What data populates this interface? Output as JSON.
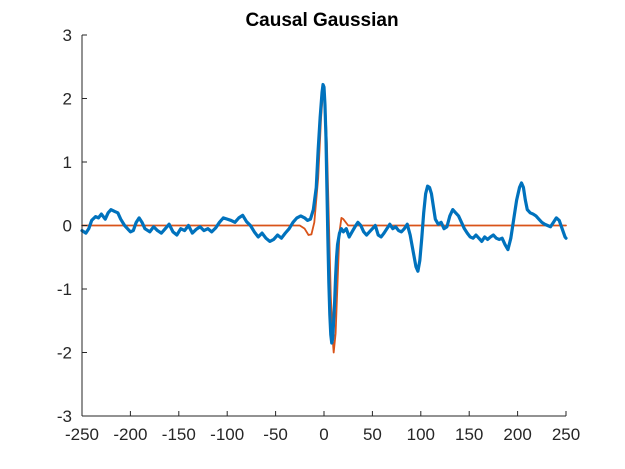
{
  "chart_data": {
    "type": "line",
    "title": "Causal Gaussian",
    "xlabel": "",
    "ylabel": "",
    "xlim": [
      -250,
      250
    ],
    "ylim": [
      -3,
      3
    ],
    "grid": false,
    "x_ticks": [
      -250,
      -200,
      -150,
      -100,
      -50,
      0,
      50,
      100,
      150,
      200,
      250
    ],
    "x_tick_labels": [
      "-250",
      "-200",
      "-150",
      "-100",
      "-50",
      "0",
      "50",
      "100",
      "150",
      "200",
      "250"
    ],
    "y_ticks": [
      -3,
      -2,
      -1,
      0,
      1,
      2,
      3
    ],
    "y_tick_labels": [
      "-3",
      "-2",
      "-1",
      "0",
      "1",
      "2",
      "3"
    ],
    "colors": {
      "noisy": "#0072BD",
      "clean": "#D95319",
      "axis": "#262626"
    },
    "series": [
      {
        "role": "clean",
        "points": [
          [
            -250,
            0
          ],
          [
            -25,
            0
          ],
          [
            -20,
            -0.05
          ],
          [
            -16,
            -0.15
          ],
          [
            -13,
            -0.14
          ],
          [
            -10,
            0.05
          ],
          [
            -6,
            0.75
          ],
          [
            -3,
            1.7
          ],
          [
            -1,
            2.12
          ],
          [
            1,
            2.0
          ],
          [
            3,
            1.3
          ],
          [
            5,
            0.1
          ],
          [
            7,
            -1.1
          ],
          [
            9,
            -1.8
          ],
          [
            10,
            -2.0
          ],
          [
            12,
            -1.7
          ],
          [
            14,
            -0.9
          ],
          [
            16,
            -0.1
          ],
          [
            18,
            0.12
          ],
          [
            20,
            0.1
          ],
          [
            25,
            0
          ],
          [
            250,
            0
          ]
        ]
      },
      {
        "role": "noisy",
        "points": [
          [
            -250,
            -0.08
          ],
          [
            -246,
            -0.12
          ],
          [
            -243,
            -0.05
          ],
          [
            -240,
            0.08
          ],
          [
            -236,
            0.14
          ],
          [
            -233,
            0.12
          ],
          [
            -230,
            0.18
          ],
          [
            -226,
            0.1
          ],
          [
            -223,
            0.2
          ],
          [
            -220,
            0.25
          ],
          [
            -216,
            0.22
          ],
          [
            -213,
            0.2
          ],
          [
            -210,
            0.1
          ],
          [
            -206,
            0.0
          ],
          [
            -203,
            -0.05
          ],
          [
            -200,
            -0.1
          ],
          [
            -197,
            -0.08
          ],
          [
            -194,
            0.05
          ],
          [
            -191,
            0.12
          ],
          [
            -188,
            0.05
          ],
          [
            -185,
            -0.05
          ],
          [
            -180,
            -0.1
          ],
          [
            -176,
            -0.02
          ],
          [
            -172,
            -0.08
          ],
          [
            -168,
            -0.12
          ],
          [
            -164,
            -0.05
          ],
          [
            -160,
            0.02
          ],
          [
            -156,
            -0.1
          ],
          [
            -152,
            -0.15
          ],
          [
            -148,
            -0.05
          ],
          [
            -144,
            -0.08
          ],
          [
            -140,
            0.0
          ],
          [
            -136,
            -0.12
          ],
          [
            -132,
            -0.06
          ],
          [
            -128,
            -0.02
          ],
          [
            -124,
            -0.08
          ],
          [
            -120,
            -0.05
          ],
          [
            -116,
            -0.1
          ],
          [
            -112,
            -0.04
          ],
          [
            -108,
            0.05
          ],
          [
            -104,
            0.12
          ],
          [
            -100,
            0.1
          ],
          [
            -96,
            0.08
          ],
          [
            -92,
            0.05
          ],
          [
            -88,
            0.12
          ],
          [
            -84,
            0.16
          ],
          [
            -80,
            0.06
          ],
          [
            -76,
            0.0
          ],
          [
            -72,
            -0.1
          ],
          [
            -68,
            -0.18
          ],
          [
            -64,
            -0.12
          ],
          [
            -60,
            -0.2
          ],
          [
            -56,
            -0.25
          ],
          [
            -52,
            -0.22
          ],
          [
            -48,
            -0.15
          ],
          [
            -44,
            -0.2
          ],
          [
            -40,
            -0.12
          ],
          [
            -36,
            -0.05
          ],
          [
            -32,
            0.05
          ],
          [
            -28,
            0.12
          ],
          [
            -24,
            0.15
          ],
          [
            -20,
            0.12
          ],
          [
            -17,
            0.08
          ],
          [
            -14,
            0.1
          ],
          [
            -11,
            0.25
          ],
          [
            -8,
            0.6
          ],
          [
            -6,
            1.2
          ],
          [
            -4,
            1.7
          ],
          [
            -2,
            2.1
          ],
          [
            -1,
            2.22
          ],
          [
            0,
            2.18
          ],
          [
            1,
            1.9
          ],
          [
            2,
            1.4
          ],
          [
            3,
            0.6
          ],
          [
            4,
            -0.2
          ],
          [
            5,
            -0.9
          ],
          [
            6,
            -1.4
          ],
          [
            7,
            -1.72
          ],
          [
            8,
            -1.85
          ],
          [
            9,
            -1.78
          ],
          [
            10,
            -1.5
          ],
          [
            11,
            -1.2
          ],
          [
            12,
            -0.8
          ],
          [
            13,
            -0.5
          ],
          [
            14,
            -0.3
          ],
          [
            16,
            -0.12
          ],
          [
            18,
            -0.05
          ],
          [
            20,
            -0.1
          ],
          [
            23,
            -0.05
          ],
          [
            26,
            -0.18
          ],
          [
            29,
            -0.1
          ],
          [
            32,
            -0.02
          ],
          [
            35,
            0.05
          ],
          [
            38,
            0.0
          ],
          [
            41,
            -0.1
          ],
          [
            44,
            -0.15
          ],
          [
            47,
            -0.1
          ],
          [
            50,
            -0.05
          ],
          [
            53,
            0.0
          ],
          [
            56,
            -0.15
          ],
          [
            59,
            -0.18
          ],
          [
            62,
            -0.12
          ],
          [
            65,
            -0.05
          ],
          [
            68,
            0.02
          ],
          [
            71,
            -0.05
          ],
          [
            74,
            -0.02
          ],
          [
            77,
            -0.08
          ],
          [
            80,
            -0.1
          ],
          [
            83,
            -0.05
          ],
          [
            86,
            0.02
          ],
          [
            89,
            -0.15
          ],
          [
            92,
            -0.4
          ],
          [
            95,
            -0.65
          ],
          [
            97,
            -0.72
          ],
          [
            99,
            -0.55
          ],
          [
            101,
            -0.2
          ],
          [
            103,
            0.2
          ],
          [
            105,
            0.5
          ],
          [
            107,
            0.62
          ],
          [
            109,
            0.6
          ],
          [
            111,
            0.5
          ],
          [
            113,
            0.3
          ],
          [
            115,
            0.1
          ],
          [
            118,
            0.02
          ],
          [
            121,
            0.05
          ],
          [
            124,
            -0.05
          ],
          [
            127,
            -0.02
          ],
          [
            130,
            0.15
          ],
          [
            133,
            0.25
          ],
          [
            136,
            0.2
          ],
          [
            139,
            0.15
          ],
          [
            142,
            0.05
          ],
          [
            145,
            -0.05
          ],
          [
            148,
            -0.12
          ],
          [
            151,
            -0.18
          ],
          [
            154,
            -0.2
          ],
          [
            157,
            -0.15
          ],
          [
            160,
            -0.2
          ],
          [
            163,
            -0.25
          ],
          [
            166,
            -0.18
          ],
          [
            169,
            -0.22
          ],
          [
            172,
            -0.18
          ],
          [
            175,
            -0.15
          ],
          [
            178,
            -0.2
          ],
          [
            181,
            -0.22
          ],
          [
            184,
            -0.2
          ],
          [
            187,
            -0.3
          ],
          [
            190,
            -0.38
          ],
          [
            193,
            -0.2
          ],
          [
            196,
            0.1
          ],
          [
            199,
            0.4
          ],
          [
            202,
            0.6
          ],
          [
            204,
            0.67
          ],
          [
            206,
            0.6
          ],
          [
            208,
            0.4
          ],
          [
            210,
            0.25
          ],
          [
            213,
            0.2
          ],
          [
            216,
            0.18
          ],
          [
            219,
            0.15
          ],
          [
            222,
            0.1
          ],
          [
            225,
            0.05
          ],
          [
            228,
            0.02
          ],
          [
            231,
            0.0
          ],
          [
            234,
            -0.02
          ],
          [
            237,
            0.05
          ],
          [
            240,
            0.12
          ],
          [
            243,
            0.08
          ],
          [
            246,
            -0.05
          ],
          [
            249,
            -0.18
          ],
          [
            250,
            -0.2
          ]
        ]
      }
    ]
  }
}
